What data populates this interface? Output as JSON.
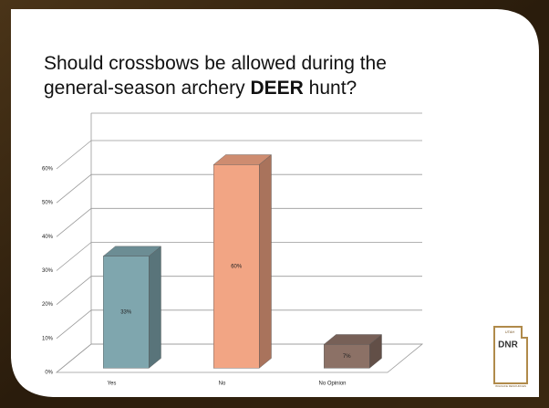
{
  "title": {
    "line1": "Should crossbows be allowed during the",
    "line2_start": "general-season archery",
    "emphasis": "DEER",
    "line2_end": "hunt?"
  },
  "chart_data": {
    "type": "bar3d",
    "categories": [
      "Yes",
      "No",
      "No Opinion"
    ],
    "values": [
      33,
      60,
      7
    ],
    "value_labels": [
      "33%",
      "60%",
      "7%"
    ],
    "colors": [
      "#7fa6ae",
      "#f2a584",
      "#8c7166"
    ],
    "ylim": [
      0,
      60
    ],
    "yticks": [
      {
        "value": 0,
        "label": "0%"
      },
      {
        "value": 10,
        "label": "10%"
      },
      {
        "value": 20,
        "label": "20%"
      },
      {
        "value": 30,
        "label": "30%"
      },
      {
        "value": 40,
        "label": "40%"
      },
      {
        "value": 50,
        "label": "50%"
      },
      {
        "value": 60,
        "label": "60%"
      }
    ],
    "grid": true
  },
  "logo": {
    "top": "UTAH",
    "mark": "DNR",
    "bottom": "WILDLIFE RESOURCES"
  }
}
